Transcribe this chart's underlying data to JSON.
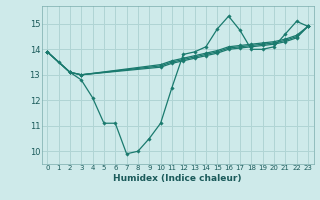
{
  "title": "",
  "xlabel": "Humidex (Indice chaleur)",
  "ylabel": "",
  "background_color": "#ceeaea",
  "grid_color": "#b0d4d4",
  "line_color": "#1a7a6e",
  "xlim": [
    -0.5,
    23.5
  ],
  "ylim": [
    9.5,
    15.7
  ],
  "xticks": [
    0,
    1,
    2,
    3,
    4,
    5,
    6,
    7,
    8,
    9,
    10,
    11,
    12,
    13,
    14,
    15,
    16,
    17,
    18,
    19,
    20,
    21,
    22,
    23
  ],
  "yticks": [
    10,
    11,
    12,
    13,
    14,
    15
  ],
  "lines": [
    {
      "x": [
        0,
        1,
        2,
        3,
        4,
        5,
        6,
        7,
        8,
        9,
        10,
        11,
        12,
        13,
        14,
        15,
        16,
        17,
        18,
        19,
        20,
        21,
        22,
        23
      ],
      "y": [
        13.9,
        13.5,
        13.1,
        12.8,
        12.1,
        11.1,
        11.1,
        9.9,
        10.0,
        10.5,
        11.1,
        12.5,
        13.8,
        13.9,
        14.1,
        14.8,
        15.3,
        14.75,
        14.0,
        14.0,
        14.1,
        14.6,
        15.1,
        14.9
      ]
    },
    {
      "x": [
        0,
        2,
        3,
        10,
        11,
        12,
        13,
        14,
        15,
        16,
        17,
        18,
        19,
        20,
        21,
        22,
        23
      ],
      "y": [
        13.9,
        13.1,
        13.0,
        13.3,
        13.45,
        13.55,
        13.65,
        13.75,
        13.85,
        14.0,
        14.05,
        14.1,
        14.15,
        14.2,
        14.3,
        14.45,
        14.9
      ]
    },
    {
      "x": [
        0,
        2,
        3,
        10,
        11,
        12,
        13,
        14,
        15,
        16,
        17,
        18,
        19,
        20,
        21,
        22,
        23
      ],
      "y": [
        13.9,
        13.1,
        13.0,
        13.35,
        13.5,
        13.6,
        13.7,
        13.8,
        13.9,
        14.05,
        14.1,
        14.15,
        14.2,
        14.25,
        14.35,
        14.5,
        14.9
      ]
    },
    {
      "x": [
        0,
        2,
        3,
        10,
        11,
        12,
        13,
        14,
        15,
        16,
        17,
        18,
        19,
        20,
        21,
        22,
        23
      ],
      "y": [
        13.9,
        13.1,
        13.0,
        13.4,
        13.55,
        13.65,
        13.75,
        13.85,
        13.95,
        14.1,
        14.15,
        14.2,
        14.25,
        14.3,
        14.4,
        14.55,
        14.9
      ]
    }
  ]
}
